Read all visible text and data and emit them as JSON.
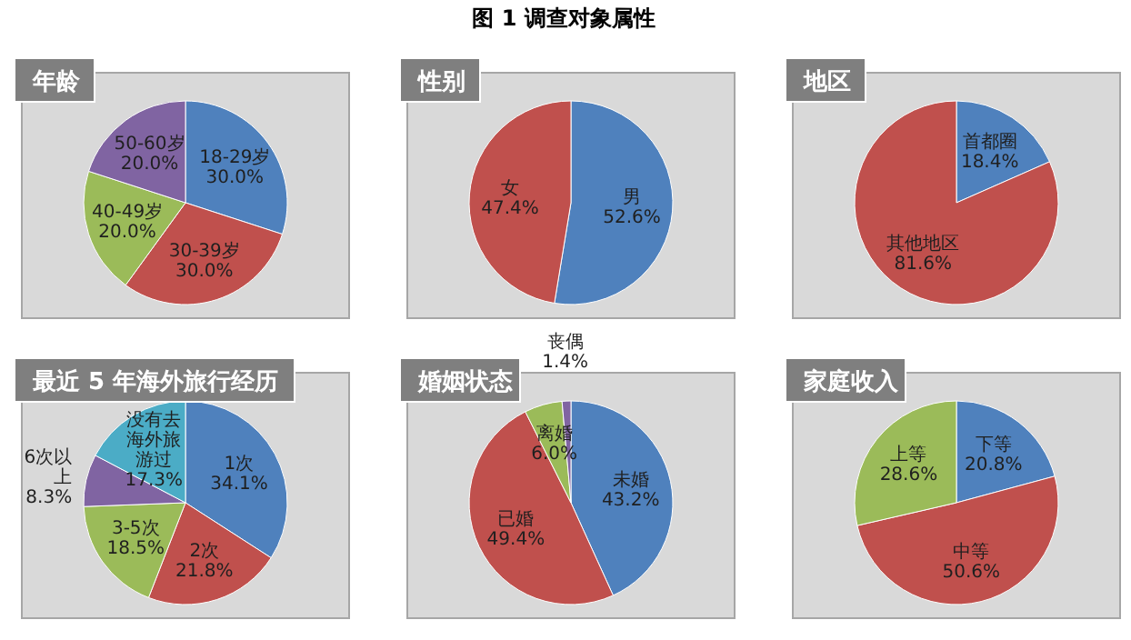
{
  "chart_data": [
    {
      "type": "pie",
      "title": "年龄",
      "annotations": [
        "图 1 调查对象属性"
      ],
      "categories": [
        "18-29岁",
        "30-39岁",
        "40-49岁",
        "50-60岁"
      ],
      "values": [
        30.0,
        30.0,
        20.0,
        20.0
      ],
      "value_labels": [
        "30.0%",
        "30.0%",
        "20.0%",
        "20.0%"
      ],
      "colors": [
        "#4f81bd",
        "#c0504d",
        "#9bbb59",
        "#8064a2"
      ]
    },
    {
      "type": "pie",
      "title": "性别",
      "categories": [
        "男",
        "女"
      ],
      "values": [
        52.6,
        47.4
      ],
      "value_labels": [
        "52.6%",
        "47.4%"
      ],
      "colors": [
        "#4f81bd",
        "#c0504d"
      ]
    },
    {
      "type": "pie",
      "title": "地区",
      "categories": [
        "首都圈",
        "其他地区"
      ],
      "values": [
        18.4,
        81.6
      ],
      "value_labels": [
        "18.4%",
        "81.6%"
      ],
      "colors": [
        "#4f81bd",
        "#c0504d"
      ]
    },
    {
      "type": "pie",
      "title": "最近 5 年海外旅行经历",
      "categories": [
        "1次",
        "2次",
        "3-5次",
        "6次以上",
        "没有去海外旅游过"
      ],
      "values": [
        34.1,
        21.8,
        18.5,
        8.3,
        17.3
      ],
      "value_labels": [
        "34.1%",
        "21.8%",
        "18.5%",
        "8.3%",
        "17.3%"
      ],
      "colors": [
        "#4f81bd",
        "#c0504d",
        "#9bbb59",
        "#8064a2",
        "#4bacc6"
      ]
    },
    {
      "type": "pie",
      "title": "婚姻状态",
      "categories": [
        "未婚",
        "已婚",
        "离婚",
        "丧偶"
      ],
      "values": [
        43.2,
        49.4,
        6.0,
        1.4
      ],
      "value_labels": [
        "43.2%",
        "49.4%",
        "6.0%",
        "1.4%"
      ],
      "colors": [
        "#4f81bd",
        "#c0504d",
        "#9bbb59",
        "#8064a2"
      ]
    },
    {
      "type": "pie",
      "title": "家庭收入",
      "categories": [
        "下等",
        "中等",
        "上等"
      ],
      "values": [
        20.8,
        50.6,
        28.6
      ],
      "value_labels": [
        "20.8%",
        "50.6%",
        "28.6%"
      ],
      "colors": [
        "#4f81bd",
        "#c0504d",
        "#9bbb59"
      ]
    }
  ]
}
